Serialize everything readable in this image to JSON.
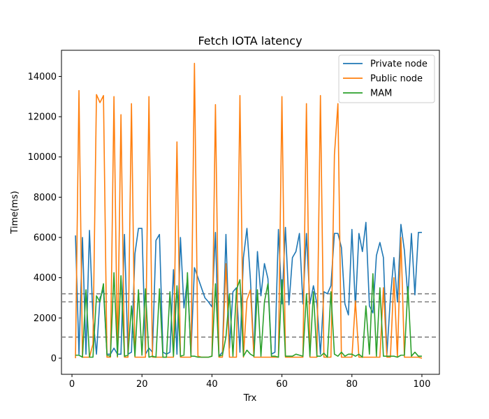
{
  "chart_data": {
    "type": "line",
    "title": "Fetch IOTA latency",
    "xlabel": "Trx",
    "ylabel": "Time(ms)",
    "xlim": [
      -3,
      105
    ],
    "ylim": [
      -800,
      15300
    ],
    "xticks": [
      0,
      20,
      40,
      60,
      80,
      100
    ],
    "yticks": [
      0,
      2000,
      4000,
      6000,
      8000,
      10000,
      12000,
      14000
    ],
    "legend_position": "top-right",
    "hlines": [
      {
        "y": 3200,
        "color": "#808080",
        "style": "dashed"
      },
      {
        "y": 2800,
        "color": "#808080",
        "style": "dashed"
      },
      {
        "y": 1050,
        "color": "#808080",
        "style": "dashed"
      }
    ],
    "x": [
      1,
      2,
      3,
      4,
      5,
      6,
      7,
      8,
      9,
      10,
      11,
      12,
      13,
      14,
      15,
      16,
      17,
      18,
      19,
      20,
      21,
      22,
      23,
      24,
      25,
      26,
      27,
      28,
      29,
      30,
      31,
      32,
      33,
      34,
      35,
      36,
      37,
      38,
      39,
      40,
      41,
      42,
      43,
      44,
      45,
      46,
      47,
      48,
      49,
      50,
      51,
      52,
      53,
      54,
      55,
      56,
      57,
      58,
      59,
      60,
      61,
      62,
      63,
      64,
      65,
      66,
      67,
      68,
      69,
      70,
      71,
      72,
      73,
      74,
      75,
      76,
      77,
      78,
      79,
      80,
      81,
      82,
      83,
      84,
      85,
      86,
      87,
      88,
      89,
      90,
      91,
      92,
      93,
      94,
      95,
      96,
      97,
      98,
      99,
      100
    ],
    "series": [
      {
        "name": "Private node",
        "color": "#1f77b4",
        "values": [
          6100,
          200,
          6000,
          200,
          6350,
          2000,
          200,
          3000,
          3400,
          200,
          200,
          500,
          200,
          200,
          6150,
          200,
          300,
          5200,
          6450,
          6450,
          200,
          500,
          300,
          5850,
          6150,
          300,
          200,
          300,
          4400,
          200,
          6000,
          2500,
          3950,
          200,
          4500,
          4000,
          3500,
          3000,
          2800,
          2550,
          6250,
          100,
          300,
          6150,
          500,
          3300,
          3500,
          300,
          5000,
          6450,
          3900,
          200,
          5300,
          3100,
          4700,
          3950,
          200,
          300,
          6400,
          2700,
          6500,
          2650,
          5000,
          5300,
          6200,
          2700,
          6200,
          2700,
          3600,
          2700,
          200,
          3300,
          3200,
          3600,
          6200,
          6200,
          5500,
          2700,
          2150,
          6400,
          2500,
          6200,
          5300,
          6750,
          2600,
          2250,
          5100,
          5750,
          5000,
          200,
          3000,
          5000,
          2800,
          6650,
          5350,
          3000,
          6200,
          3150,
          6250,
          6250
        ],
        "smooth": false
      },
      {
        "name": "Public node",
        "color": "#ff7f0e",
        "values": [
          0,
          13300,
          50,
          50,
          50,
          700,
          13100,
          12700,
          13050,
          50,
          50,
          13000,
          50,
          12100,
          50,
          50,
          12650,
          50,
          50,
          50,
          50,
          13000,
          50,
          50,
          50,
          50,
          50,
          50,
          50,
          10750,
          50,
          50,
          50,
          50,
          14650,
          100,
          50,
          50,
          50,
          100,
          12600,
          50,
          50,
          4700,
          50,
          50,
          50,
          13050,
          50,
          2900,
          3400,
          50,
          50,
          50,
          50,
          50,
          50,
          50,
          50,
          13000,
          50,
          50,
          50,
          50,
          50,
          50,
          12650,
          50,
          50,
          50,
          13050,
          50,
          50,
          50,
          10100,
          12650,
          50,
          50,
          50,
          50,
          2850,
          50,
          50,
          50,
          50,
          50,
          50,
          50,
          3500,
          50,
          50,
          4000,
          50,
          6000,
          50,
          50,
          50,
          50,
          50,
          0
        ],
        "smooth": false
      },
      {
        "name": "MAM",
        "color": "#2ca02c",
        "values": [
          150,
          150,
          50,
          3400,
          50,
          50,
          3100,
          2800,
          3700,
          150,
          100,
          4250,
          100,
          4100,
          100,
          150,
          2600,
          100,
          3400,
          150,
          3450,
          50,
          100,
          50,
          3450,
          50,
          50,
          3300,
          100,
          3600,
          100,
          150,
          4250,
          100,
          100,
          50,
          50,
          50,
          50,
          100,
          3700,
          100,
          150,
          1050,
          3200,
          100,
          3400,
          3900,
          100,
          400,
          200,
          100,
          3400,
          100,
          2800,
          3700,
          100,
          100,
          50,
          3900,
          100,
          100,
          100,
          200,
          150,
          100,
          3200,
          100,
          3300,
          100,
          100,
          250,
          50,
          3300,
          200,
          100,
          300,
          100,
          200,
          200,
          100,
          200,
          50,
          2600,
          200,
          4200,
          100,
          3500,
          100,
          100,
          100,
          100,
          50,
          150,
          150,
          3550,
          100,
          300,
          100,
          100
        ],
        "smooth": false
      }
    ]
  }
}
